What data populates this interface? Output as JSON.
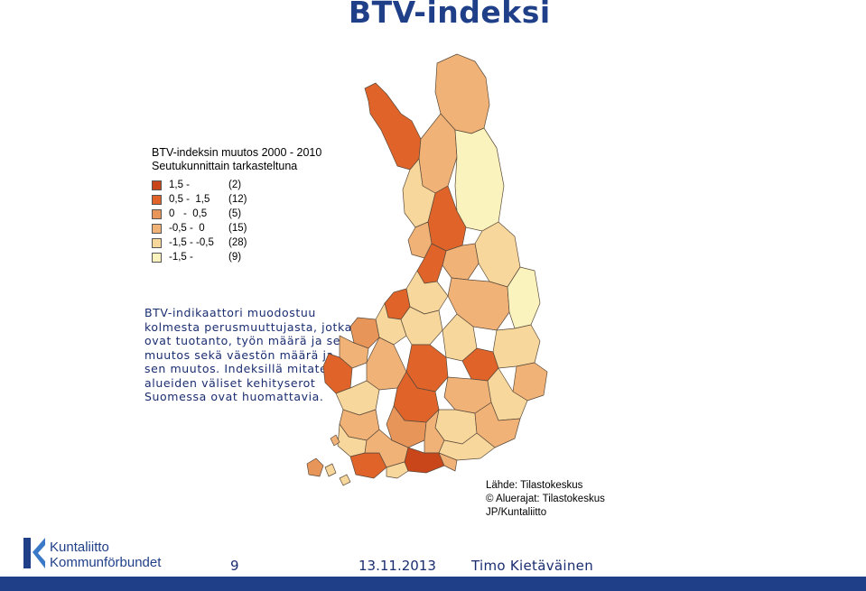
{
  "title": "BTV-indeksi",
  "legend": {
    "title_line1": "BTV-indeksin muutos 2000 - 2010",
    "title_line2": "Seutukunnittain tarkasteltuna",
    "items": [
      {
        "range": "1,5 -",
        "count": "(2)",
        "color": "#c9461a"
      },
      {
        "range": "0,5 -  1,5",
        "count": "(12)",
        "color": "#e0632a"
      },
      {
        "range": "0   -  0,5",
        "count": "(5)",
        "color": "#e8955a"
      },
      {
        "range": "-0,5 -  0",
        "count": "(15)",
        "color": "#f0b277"
      },
      {
        "range": "-1,5 - -0,5",
        "count": "(28)",
        "color": "#f7d79b"
      },
      {
        "range": "-1,5 -",
        "count": "(9)",
        "color": "#fbf3bd"
      }
    ]
  },
  "description": "BTV-indikaattori muodostuu kolmesta perusmuuttujasta, jotka ovat tuotanto, työn määrä ja sen muutos sekä väestön määrä ja sen muutos. Indeksillä mitaten alueiden väliset kehityserot Suomessa ovat huomattavia.",
  "source": {
    "line1": "Lähde: Tilastokeskus",
    "line2": "© Aluerajat: Tilastokeskus",
    "line3": "JP/Kuntaliitto"
  },
  "footer": {
    "logo_line1": "Kuntaliitto",
    "logo_line2": "Kommunförbundet",
    "page": "9",
    "date": "13.11.2013",
    "author": "Timo Kietäväinen"
  },
  "colors": {
    "brand": "#1f3f88",
    "text_blue": "#1a2d70"
  }
}
